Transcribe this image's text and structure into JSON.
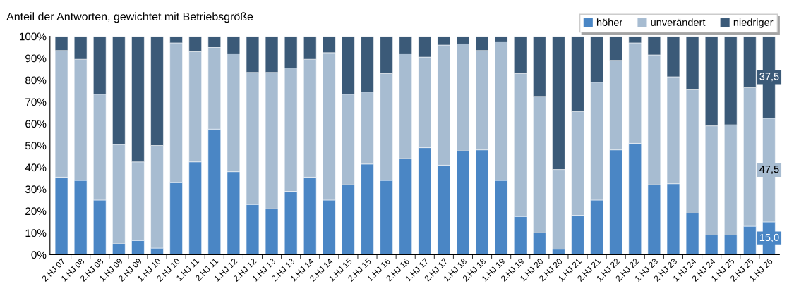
{
  "chart_data": {
    "type": "bar",
    "stacked": true,
    "title": "Anteil der Antworten, gewichtet mit Betriebsgröße",
    "categories": [
      "2.HJ 07",
      "1.HJ 08",
      "2.HJ 08",
      "1.HJ 09",
      "2.HJ 09",
      "1.HJ 10",
      "2.HJ 10",
      "1.HJ 11",
      "2.HJ 11",
      "1.HJ 12",
      "2.HJ 12",
      "1.HJ 13",
      "2.HJ 13",
      "1.HJ 14",
      "2.HJ 14",
      "1.HJ 15",
      "2.HJ 15",
      "1.HJ 16",
      "2.HJ 16",
      "1.HJ 17",
      "2.HJ 17",
      "1.HJ 18",
      "2.HJ 18",
      "1.HJ 19",
      "2.HJ 19",
      "1.HJ 20",
      "2.HJ 20",
      "1.HJ 21",
      "2.HJ 21",
      "1.HJ 22",
      "2.HJ 22",
      "1.HJ 23",
      "2.HJ 23",
      "1.HJ 24",
      "2.HJ 24",
      "1.HJ 25",
      "2.HJ 25",
      "1.HJ 26"
    ],
    "series": [
      {
        "name": "höher",
        "color": "#4a86c5",
        "values": [
          35.5,
          34,
          25,
          5,
          6.5,
          3,
          33,
          42.5,
          57.5,
          38,
          23,
          21,
          29,
          35.5,
          25,
          32,
          41.5,
          34,
          44,
          49,
          41,
          47.5,
          48,
          34,
          17.5,
          10,
          2.5,
          18,
          25,
          48,
          51,
          32,
          32.5,
          19,
          9,
          9,
          13,
          15
        ],
        "value_labels": [
          null,
          null,
          null,
          null,
          null,
          null,
          null,
          null,
          null,
          null,
          null,
          null,
          null,
          null,
          null,
          null,
          null,
          null,
          null,
          null,
          null,
          null,
          null,
          null,
          null,
          null,
          null,
          null,
          null,
          null,
          null,
          null,
          null,
          null,
          null,
          null,
          null,
          "15,0"
        ]
      },
      {
        "name": "unverändert",
        "color": "#a7bcd1",
        "values": [
          58,
          55.5,
          48.5,
          45.5,
          36,
          47,
          64,
          50.5,
          37.5,
          54,
          60.5,
          62.5,
          56.5,
          54,
          67.5,
          41.5,
          33,
          49,
          48,
          41.5,
          55,
          49,
          45.5,
          63.5,
          65.5,
          62.5,
          36.5,
          47.5,
          54,
          41,
          46,
          59.5,
          49,
          56.5,
          50,
          50.5,
          63.5,
          47.5
        ],
        "value_labels": [
          null,
          null,
          null,
          null,
          null,
          null,
          null,
          null,
          null,
          null,
          null,
          null,
          null,
          null,
          null,
          null,
          null,
          null,
          null,
          null,
          null,
          null,
          null,
          null,
          null,
          null,
          null,
          null,
          null,
          null,
          null,
          null,
          null,
          null,
          null,
          null,
          null,
          "47,5"
        ]
      },
      {
        "name": "niedriger",
        "color": "#3b5a78",
        "values": [
          6.5,
          10.5,
          26.5,
          49.5,
          57.5,
          50,
          3,
          7,
          5,
          8,
          16.5,
          16.5,
          14.5,
          10.5,
          7.5,
          26.5,
          25.5,
          17,
          8,
          9.5,
          4,
          3.5,
          6.5,
          2.5,
          17,
          27.5,
          61,
          34.5,
          21,
          11,
          3,
          8.5,
          18.5,
          24.5,
          41,
          40.5,
          23.5,
          37.5
        ],
        "value_labels": [
          null,
          null,
          null,
          null,
          null,
          null,
          null,
          null,
          null,
          null,
          null,
          null,
          null,
          null,
          null,
          null,
          null,
          null,
          null,
          null,
          null,
          null,
          null,
          null,
          null,
          null,
          null,
          null,
          null,
          null,
          null,
          null,
          null,
          null,
          null,
          null,
          null,
          "37,5"
        ]
      }
    ],
    "ylim": [
      0,
      100
    ],
    "yticks": [
      {
        "value": 0,
        "label": "0%"
      },
      {
        "value": 10,
        "label": "10%"
      },
      {
        "value": 20,
        "label": "20%"
      },
      {
        "value": 30,
        "label": "30%"
      },
      {
        "value": 40,
        "label": "40%"
      },
      {
        "value": 50,
        "label": "50%"
      },
      {
        "value": 60,
        "label": "60%"
      },
      {
        "value": 70,
        "label": "70%"
      },
      {
        "value": 80,
        "label": "80%"
      },
      {
        "value": 90,
        "label": "90%"
      },
      {
        "value": 100,
        "label": "100%"
      }
    ],
    "grid": false,
    "legend": "top right"
  }
}
